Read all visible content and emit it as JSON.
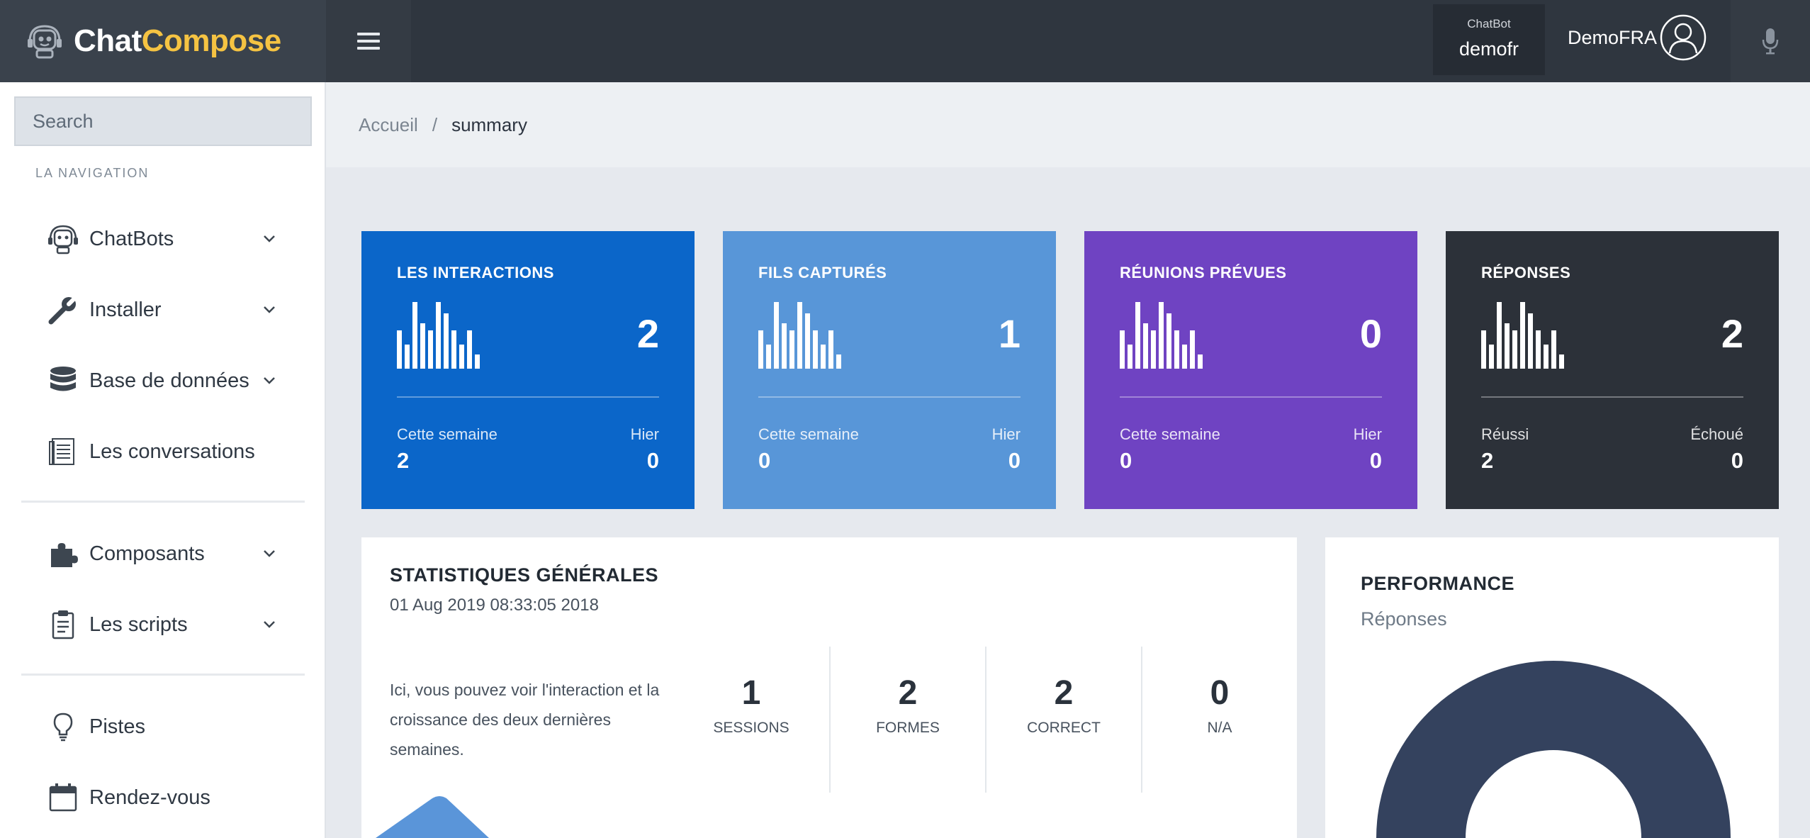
{
  "brand": {
    "part1": "Chat",
    "part2": "Compose"
  },
  "topbar": {
    "chatbot_caption": "ChatBot",
    "chatbot_name": "demofr",
    "user_name": "DemoFRA"
  },
  "sidebar": {
    "search_placeholder": "Search",
    "nav_caption": "LA NAVIGATION",
    "items": [
      {
        "label": "ChatBots",
        "icon": "robot-icon",
        "has_submenu": true
      },
      {
        "label": "Installer",
        "icon": "wrench-icon",
        "has_submenu": true
      },
      {
        "label": "Base de données",
        "icon": "database-icon",
        "has_submenu": true
      },
      {
        "label": "Les conversations",
        "icon": "list-icon",
        "has_submenu": false
      },
      {
        "label": "Composants",
        "icon": "puzzle-icon",
        "has_submenu": true
      },
      {
        "label": "Les scripts",
        "icon": "clipboard-icon",
        "has_submenu": true
      },
      {
        "label": "Pistes",
        "icon": "lightbulb-icon",
        "has_submenu": false
      },
      {
        "label": "Rendez-vous",
        "icon": "calendar-icon",
        "has_submenu": false
      }
    ]
  },
  "breadcrumb": {
    "home": "Accueil",
    "separator": "/",
    "current": "summary"
  },
  "cards": [
    {
      "title": "LES INTERACTIONS",
      "value": "2",
      "left_label": "Cette semaine",
      "left_value": "2",
      "right_label": "Hier",
      "right_value": "0",
      "color": "#0b66c9"
    },
    {
      "title": "FILS CAPTURÉS",
      "value": "1",
      "left_label": "Cette semaine",
      "left_value": "0",
      "right_label": "Hier",
      "right_value": "0",
      "color": "#5896d8"
    },
    {
      "title": "RÉUNIONS PRÉVUES",
      "value": "0",
      "left_label": "Cette semaine",
      "left_value": "0",
      "right_label": "Hier",
      "right_value": "0",
      "color": "#6f43c2"
    },
    {
      "title": "RÉPONSES",
      "value": "2",
      "left_label": "Réussi",
      "left_value": "2",
      "right_label": "Échoué",
      "right_value": "0",
      "color": "#2c3139"
    }
  ],
  "general_stats": {
    "title": "STATISTIQUES GÉNÉRALES",
    "date": "01 Aug 2019 08:33:05 2018",
    "description": "Ici, vous pouvez voir l'interaction et la croissance des deux dernières semaines.",
    "kpis": [
      {
        "value": "1",
        "label": "SESSIONS"
      },
      {
        "value": "2",
        "label": "FORMES"
      },
      {
        "value": "2",
        "label": "CORRECT"
      },
      {
        "value": "0",
        "label": "N/A"
      }
    ]
  },
  "performance": {
    "title": "PERFORMANCE",
    "subtitle": "Réponses",
    "donut_color": "#34425e"
  }
}
